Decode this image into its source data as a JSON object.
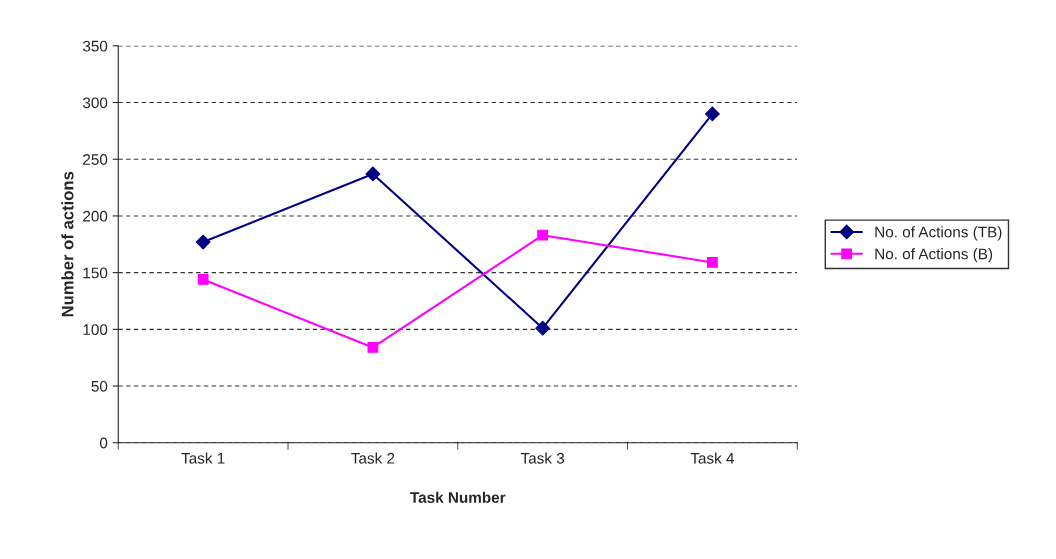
{
  "chart_data": {
    "type": "line",
    "xlabel": "Task Number",
    "ylabel": "Number of actions",
    "categories": [
      "Task 1",
      "Task 2",
      "Task 3",
      "Task 4"
    ],
    "series": [
      {
        "name": "No. of Actions (TB)",
        "color": "#000080",
        "marker": "diamond",
        "values": [
          177,
          237,
          101,
          290
        ]
      },
      {
        "name": "No. of Actions (B)",
        "color": "#ff00ff",
        "marker": "square",
        "values": [
          144,
          84,
          183,
          159
        ]
      }
    ],
    "ylim": [
      0,
      350
    ],
    "yticks": [
      0,
      50,
      100,
      150,
      200,
      250,
      300,
      350
    ],
    "grid": "y",
    "legend": "right"
  }
}
